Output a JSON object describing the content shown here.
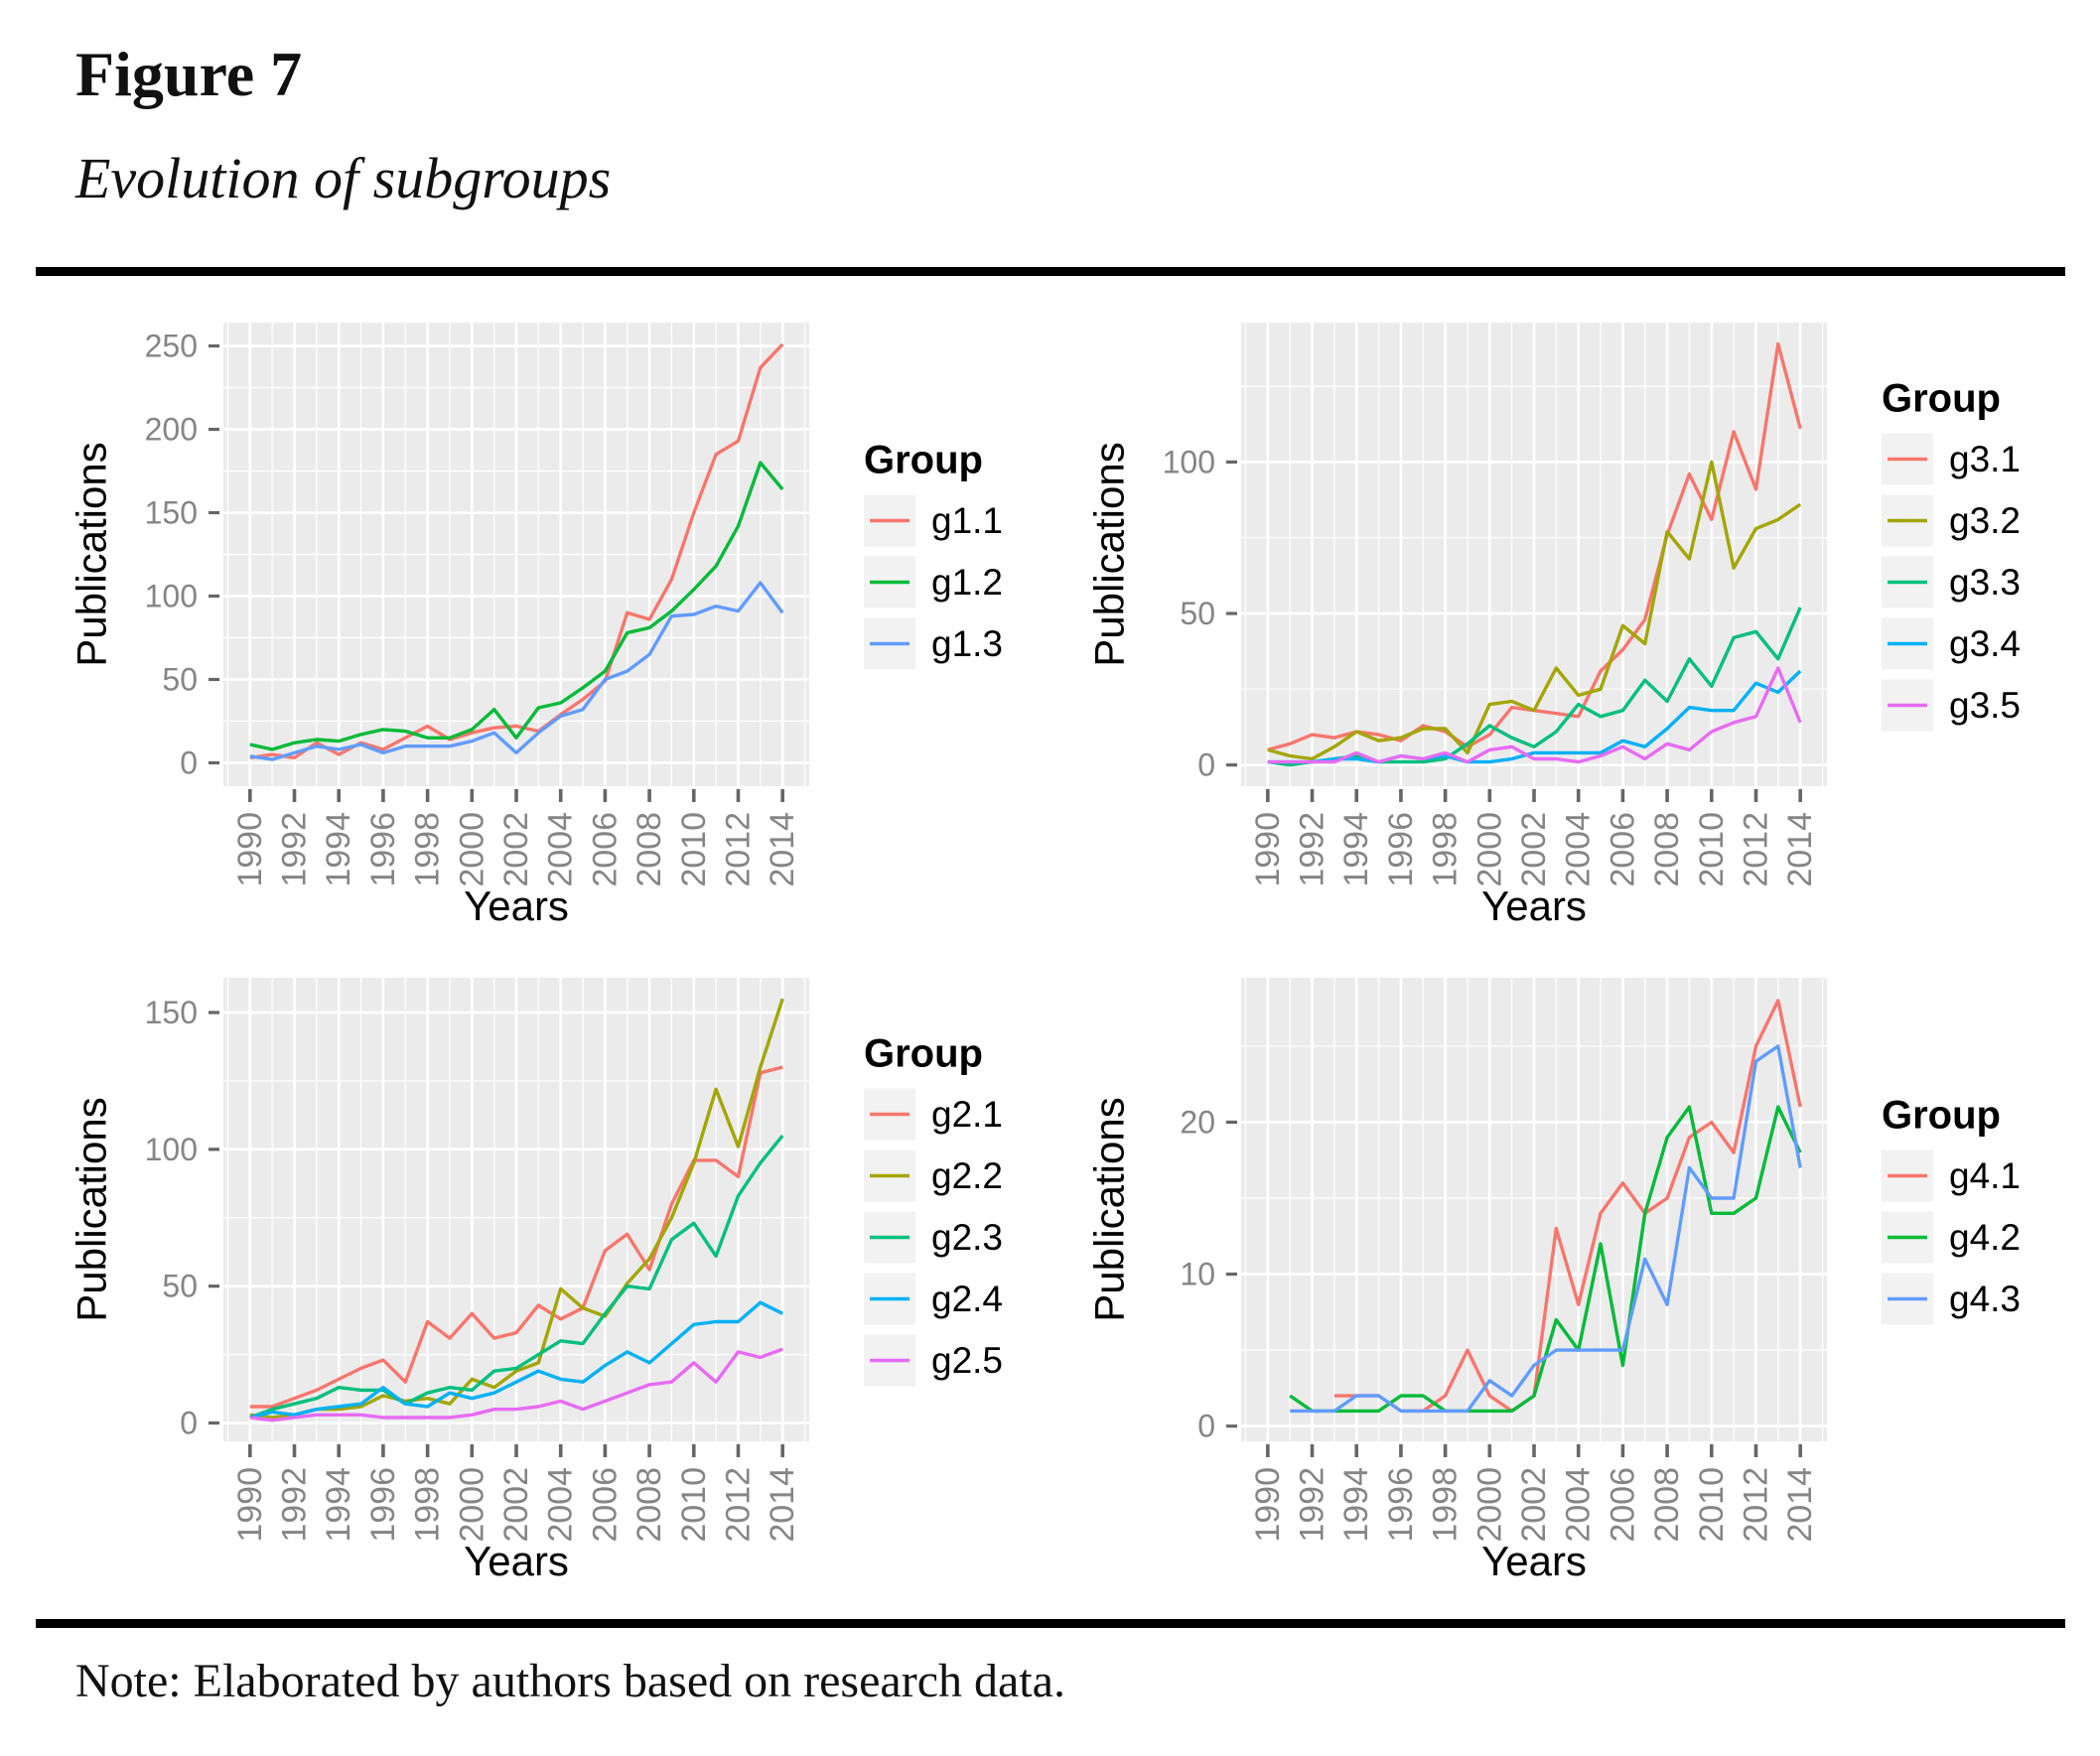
{
  "figure": {
    "label": "Figure 7",
    "title": "Evolution of subgroups",
    "note": "Note: Elaborated by authors based on research data."
  },
  "style": {
    "panel_bg": "#EBEBEB",
    "grid_color": "#FFFFFF",
    "tick_mark_color": "#666666",
    "tick_label_color": "#858585",
    "axis_title_color": "#000000",
    "legend_key_bg": "#F2F2F2",
    "legend_text_color": "#000000",
    "rule_color": "#000000"
  },
  "chart_data": [
    {
      "id": "g1",
      "position": "top-left",
      "type": "line",
      "title": "",
      "xlabel": "Years",
      "ylabel": "Publications",
      "legend_title": "Group",
      "legend_position": "right",
      "grid": true,
      "x": [
        1990,
        1991,
        1992,
        1993,
        1994,
        1995,
        1996,
        1997,
        1998,
        1999,
        2000,
        2001,
        2002,
        2003,
        2004,
        2005,
        2006,
        2007,
        2008,
        2009,
        2010,
        2011,
        2012,
        2013,
        2014
      ],
      "x_ticks": [
        1990,
        1992,
        1994,
        1996,
        1998,
        2000,
        2002,
        2004,
        2006,
        2008,
        2010,
        2012,
        2014
      ],
      "x_minor": [
        1989,
        1991,
        1993,
        1995,
        1997,
        1999,
        2001,
        2003,
        2005,
        2007,
        2009,
        2011,
        2013,
        2015
      ],
      "xlim": [
        1988.8,
        2015.2
      ],
      "y_ticks": [
        0,
        50,
        100,
        150,
        200,
        250
      ],
      "y_minor": [
        25,
        75,
        125,
        175,
        225
      ],
      "ylim": [
        -14,
        264
      ],
      "series": [
        {
          "name": "g1.1",
          "color": "#F8766D",
          "values": [
            3,
            5,
            3,
            12,
            5,
            12,
            8,
            15,
            22,
            14,
            18,
            21,
            22,
            19,
            29,
            38,
            49,
            90,
            86,
            110,
            150,
            185,
            193,
            237,
            251
          ]
        },
        {
          "name": "g1.2",
          "color": "#00BA38",
          "values": [
            11,
            8,
            12,
            14,
            13,
            17,
            20,
            19,
            15,
            15,
            20,
            32,
            15,
            33,
            36,
            45,
            55,
            78,
            81,
            91,
            104,
            118,
            142,
            180,
            164
          ]
        },
        {
          "name": "g1.3",
          "color": "#619CFF",
          "values": [
            4,
            2,
            6,
            10,
            8,
            11,
            6,
            10,
            10,
            10,
            13,
            18,
            6,
            18,
            28,
            32,
            50,
            55,
            65,
            88,
            89,
            94,
            91,
            108,
            90
          ]
        }
      ]
    },
    {
      "id": "g3",
      "position": "top-right",
      "type": "line",
      "title": "",
      "xlabel": "Years",
      "ylabel": "Publications",
      "legend_title": "Group",
      "legend_position": "right",
      "grid": true,
      "x": [
        1990,
        1991,
        1992,
        1993,
        1994,
        1995,
        1996,
        1997,
        1998,
        1999,
        2000,
        2001,
        2002,
        2003,
        2004,
        2005,
        2006,
        2007,
        2008,
        2009,
        2010,
        2011,
        2012,
        2013,
        2014
      ],
      "x_ticks": [
        1990,
        1992,
        1994,
        1996,
        1998,
        2000,
        2002,
        2004,
        2006,
        2008,
        2010,
        2012,
        2014
      ],
      "x_minor": [
        1989,
        1991,
        1993,
        1995,
        1997,
        1999,
        2001,
        2003,
        2005,
        2007,
        2009,
        2011,
        2013,
        2015
      ],
      "xlim": [
        1988.8,
        2015.2
      ],
      "y_ticks": [
        0,
        50,
        100
      ],
      "y_minor": [
        25,
        75,
        125
      ],
      "ylim": [
        -7,
        146
      ],
      "series": [
        {
          "name": "g3.1",
          "color": "#F8766D",
          "values": [
            5,
            7,
            10,
            9,
            11,
            10,
            8,
            13,
            11,
            6,
            10,
            19,
            18,
            17,
            16,
            31,
            38,
            48,
            76,
            96,
            81,
            110,
            91,
            139,
            111
          ]
        },
        {
          "name": "g3.2",
          "color": "#A3A500",
          "values": [
            5,
            3,
            2,
            6,
            11,
            8,
            9,
            12,
            12,
            4,
            20,
            21,
            18,
            32,
            23,
            25,
            46,
            40,
            77,
            68,
            100,
            65,
            78,
            81,
            86
          ]
        },
        {
          "name": "g3.3",
          "color": "#00BF7D",
          "values": [
            1,
            0,
            1,
            2,
            3,
            1,
            1,
            1,
            2,
            7,
            13,
            9,
            6,
            11,
            20,
            16,
            18,
            28,
            21,
            35,
            26,
            42,
            44,
            35,
            52
          ]
        },
        {
          "name": "g3.4",
          "color": "#00B0F6",
          "values": [
            1,
            1,
            1,
            2,
            2,
            1,
            3,
            2,
            3,
            1,
            1,
            2,
            4,
            4,
            4,
            4,
            8,
            6,
            12,
            19,
            18,
            18,
            27,
            24,
            31
          ]
        },
        {
          "name": "g3.5",
          "color": "#E76BF3",
          "values": [
            1,
            1,
            1,
            1,
            4,
            1,
            3,
            2,
            4,
            1,
            5,
            6,
            2,
            2,
            1,
            3,
            6,
            2,
            7,
            5,
            11,
            14,
            16,
            32,
            14
          ]
        }
      ]
    },
    {
      "id": "g2",
      "position": "bottom-left",
      "type": "line",
      "title": "",
      "xlabel": "Years",
      "ylabel": "Publications",
      "legend_title": "Group",
      "legend_position": "right",
      "grid": true,
      "x": [
        1990,
        1991,
        1992,
        1993,
        1994,
        1995,
        1996,
        1997,
        1998,
        1999,
        2000,
        2001,
        2002,
        2003,
        2004,
        2005,
        2006,
        2007,
        2008,
        2009,
        2010,
        2011,
        2012,
        2013,
        2014
      ],
      "x_ticks": [
        1990,
        1992,
        1994,
        1996,
        1998,
        2000,
        2002,
        2004,
        2006,
        2008,
        2010,
        2012,
        2014
      ],
      "x_minor": [
        1989,
        1991,
        1993,
        1995,
        1997,
        1999,
        2001,
        2003,
        2005,
        2007,
        2009,
        2011,
        2013,
        2015
      ],
      "xlim": [
        1988.8,
        2015.2
      ],
      "y_ticks": [
        0,
        50,
        100,
        150
      ],
      "y_minor": [
        25,
        75,
        125
      ],
      "ylim": [
        -6.7,
        162.7
      ],
      "series": [
        {
          "name": "g2.1",
          "color": "#F8766D",
          "values": [
            6,
            6,
            9,
            12,
            16,
            20,
            23,
            15,
            37,
            31,
            40,
            31,
            33,
            43,
            38,
            42,
            63,
            69,
            56,
            80,
            96,
            96,
            90,
            128,
            130
          ]
        },
        {
          "name": "g2.2",
          "color": "#A3A500",
          "values": [
            3,
            2,
            3,
            5,
            5,
            6,
            10,
            8,
            9,
            7,
            16,
            13,
            19,
            22,
            49,
            42,
            39,
            51,
            60,
            75,
            95,
            122,
            101,
            130,
            155
          ]
        },
        {
          "name": "g2.3",
          "color": "#00BF7D",
          "values": [
            2,
            5,
            7,
            9,
            13,
            12,
            12,
            7,
            11,
            13,
            12,
            19,
            20,
            25,
            30,
            29,
            40,
            50,
            49,
            67,
            73,
            61,
            83,
            95,
            105
          ]
        },
        {
          "name": "g2.4",
          "color": "#00B0F6",
          "values": [
            2,
            4,
            3,
            5,
            6,
            7,
            13,
            7,
            6,
            11,
            9,
            11,
            15,
            19,
            16,
            15,
            21,
            26,
            22,
            29,
            36,
            37,
            37,
            44,
            40
          ]
        },
        {
          "name": "g2.5",
          "color": "#E76BF3",
          "values": [
            2,
            1,
            2,
            3,
            3,
            3,
            2,
            2,
            2,
            2,
            3,
            5,
            5,
            6,
            8,
            5,
            8,
            11,
            14,
            15,
            22,
            15,
            26,
            24,
            27
          ]
        }
      ]
    },
    {
      "id": "g4",
      "position": "bottom-right",
      "type": "line",
      "title": "",
      "xlabel": "Years",
      "ylabel": "Publications",
      "legend_title": "Group",
      "legend_position": "right",
      "grid": true,
      "x": [
        1990,
        1991,
        1992,
        1993,
        1994,
        1995,
        1996,
        1997,
        1998,
        1999,
        2000,
        2001,
        2002,
        2003,
        2004,
        2005,
        2006,
        2007,
        2008,
        2009,
        2010,
        2011,
        2012,
        2013,
        2014
      ],
      "x_ticks": [
        1990,
        1992,
        1994,
        1996,
        1998,
        2000,
        2002,
        2004,
        2006,
        2008,
        2010,
        2012,
        2014
      ],
      "x_minor": [
        1989,
        1991,
        1993,
        1995,
        1997,
        1999,
        2001,
        2003,
        2005,
        2007,
        2009,
        2011,
        2013,
        2015
      ],
      "xlim": [
        1988.8,
        2015.2
      ],
      "y_ticks": [
        0,
        10,
        20
      ],
      "y_minor": [
        5,
        15,
        25
      ],
      "ylim": [
        -1.0,
        29.5
      ],
      "series": [
        {
          "name": "g4.1",
          "color": "#F8766D",
          "values": [
            null,
            null,
            null,
            2,
            2,
            2,
            1,
            1,
            2,
            5,
            2,
            1,
            2,
            13,
            8,
            14,
            16,
            14,
            15,
            19,
            20,
            18,
            25,
            28,
            21
          ]
        },
        {
          "name": "g4.2",
          "color": "#00BA38",
          "values": [
            null,
            2,
            1,
            1,
            1,
            1,
            2,
            2,
            1,
            1,
            1,
            1,
            2,
            7,
            5,
            12,
            4,
            14,
            19,
            21,
            14,
            14,
            15,
            21,
            18
          ]
        },
        {
          "name": "g4.3",
          "color": "#619CFF",
          "values": [
            null,
            1,
            1,
            1,
            2,
            2,
            1,
            1,
            1,
            1,
            3,
            2,
            4,
            5,
            5,
            5,
            5,
            11,
            8,
            17,
            15,
            15,
            24,
            25,
            17
          ]
        }
      ]
    }
  ]
}
